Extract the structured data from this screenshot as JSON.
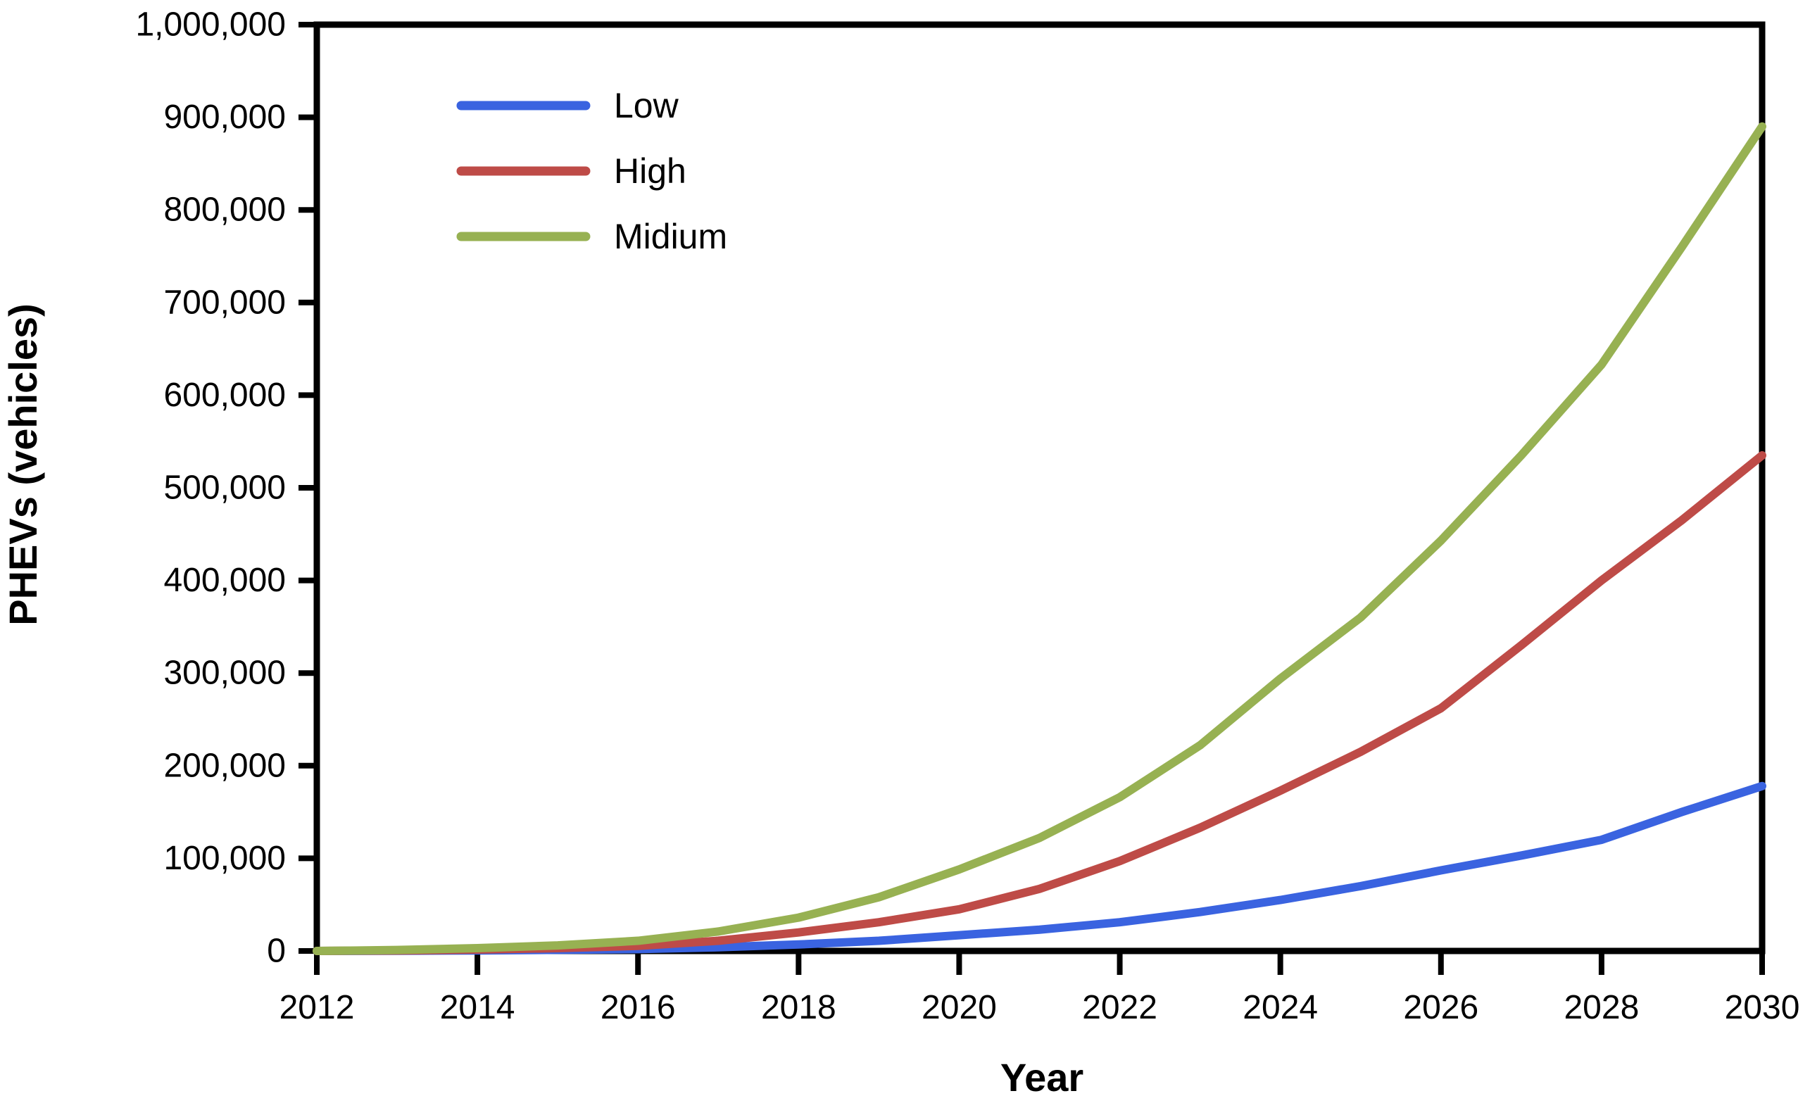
{
  "chart_data": {
    "type": "line",
    "title": "",
    "xlabel": "Year",
    "ylabel": "PHEVs (vehicles)",
    "x": [
      2012,
      2013,
      2014,
      2015,
      2016,
      2017,
      2018,
      2019,
      2020,
      2021,
      2022,
      2023,
      2024,
      2025,
      2026,
      2027,
      2028,
      2029,
      2030
    ],
    "series": [
      {
        "name": "Low",
        "color": "#3A63E0",
        "values": [
          0,
          200,
          600,
          1200,
          2000,
          4000,
          7000,
          11000,
          17000,
          23000,
          31000,
          42000,
          55000,
          70000,
          87000,
          103000,
          120000,
          150000,
          178000
        ]
      },
      {
        "name": "High",
        "color": "#BE4B47",
        "values": [
          0,
          500,
          1500,
          3000,
          5500,
          11000,
          20000,
          31000,
          45000,
          67000,
          97000,
          133000,
          173000,
          215000,
          262000,
          330000,
          400000,
          465000,
          535000
        ]
      },
      {
        "name": "Midium",
        "color": "#97B152",
        "values": [
          0,
          1000,
          3000,
          6000,
          11000,
          21000,
          36000,
          58000,
          88000,
          122000,
          166000,
          222000,
          294000,
          360000,
          443000,
          535000,
          633000,
          760000,
          890000
        ]
      }
    ],
    "xlim": [
      2012,
      2030
    ],
    "ylim": [
      0,
      1000000
    ],
    "ytick_labels": [
      "0",
      "100,000",
      "200,000",
      "300,000",
      "400,000",
      "500,000",
      "600,000",
      "700,000",
      "800,000",
      "900,000",
      "1,000,000"
    ],
    "xtick_labels": [
      "2012",
      "2014",
      "2016",
      "2018",
      "2020",
      "2022",
      "2024",
      "2026",
      "2028",
      "2030"
    ],
    "grid": false,
    "legend_position": "top-left-inside",
    "legend_entries": [
      "Low",
      "High",
      "Midium"
    ],
    "axis_color": "#000000",
    "background": "#FFFFFF"
  }
}
